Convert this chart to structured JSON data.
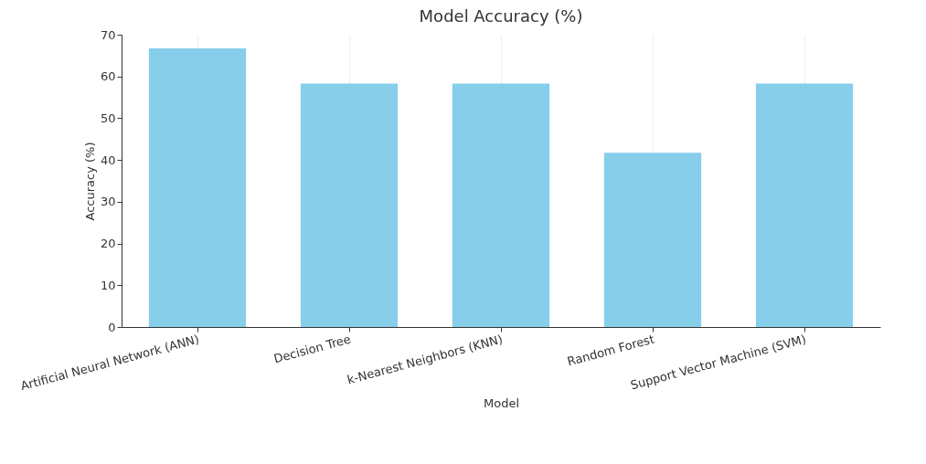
{
  "chart_data": {
    "type": "bar",
    "title": "Model Accuracy (%)",
    "xlabel": "Model",
    "ylabel": "Accuracy (%)",
    "categories": [
      "Artificial Neural Network (ANN)",
      "Decision Tree",
      "k-Nearest Neighbors (KNN)",
      "Random Forest",
      "Support Vector Machine (SVM)"
    ],
    "values": [
      66.7,
      58.3,
      58.3,
      41.7,
      58.3
    ],
    "color": "#87ceeb",
    "ylim": [
      0,
      70
    ],
    "yticks": [
      0,
      10,
      20,
      30,
      40,
      50,
      60,
      70
    ],
    "grid": "x"
  }
}
